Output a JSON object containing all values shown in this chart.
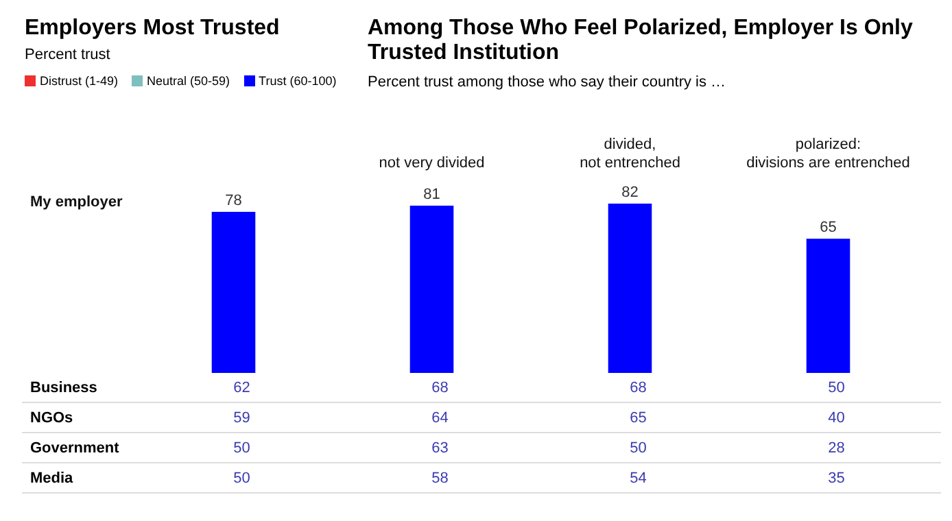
{
  "chart_data": [
    {
      "type": "bar",
      "title": "Among Those Who Feel Polarized, Employer Is Only Trusted Institution",
      "subtitle": "Percent trust among those who say their country is …",
      "annotations": [
        "Employers Most Trusted",
        "Percent trust",
        "Distrust (1-49)",
        "Neutral (50-59)",
        "Trust (60-100)"
      ],
      "categories": [
        null,
        "not very divided",
        "divided, not entrenched",
        "polarized: divisions are entrenched"
      ],
      "series": [
        {
          "name": "My employer",
          "color": "#0000ff",
          "values": [
            78,
            81,
            82,
            65
          ]
        }
      ],
      "data_labels": true,
      "legend": false,
      "grid": false
    },
    {
      "type": "heatmap",
      "categories": [
        null,
        null,
        null,
        null
      ],
      "y_categories": [
        "Business",
        "NGOs",
        "Government",
        "Media"
      ],
      "cells": [
        [
          62,
          68,
          68,
          50
        ],
        [
          59,
          64,
          65,
          40
        ],
        [
          50,
          63,
          50,
          28
        ],
        [
          50,
          58,
          54,
          35
        ]
      ],
      "data_labels": true
    }
  ]
}
